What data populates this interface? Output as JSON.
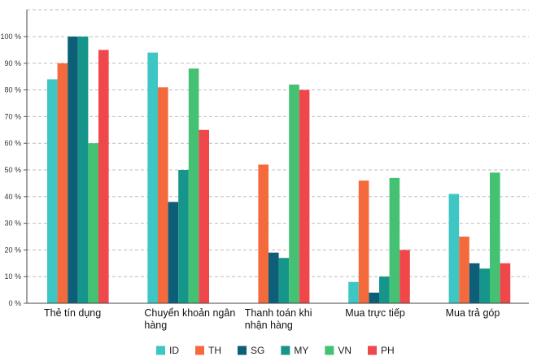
{
  "chart_data": {
    "type": "bar",
    "title": "",
    "xlabel": "",
    "ylabel": "",
    "categories": [
      [
        "Thẻ tín dụng"
      ],
      [
        "Chuyển khoản ngân",
        "hàng"
      ],
      [
        "Thanh toán khi",
        "nhận hàng"
      ],
      [
        "Mua trực tiếp"
      ],
      [
        "Mua trả góp"
      ]
    ],
    "series": [
      {
        "name": "ID",
        "color": "#3dc6c3",
        "values": [
          84,
          94,
          0,
          8,
          41
        ]
      },
      {
        "name": "TH",
        "color": "#f46a3c",
        "values": [
          90,
          81,
          52,
          46,
          25
        ]
      },
      {
        "name": "SG",
        "color": "#0d5f78",
        "values": [
          100,
          38,
          19,
          4,
          15
        ]
      },
      {
        "name": "MY",
        "color": "#16968b",
        "values": [
          100,
          50,
          17,
          10,
          13
        ]
      },
      {
        "name": "VN",
        "color": "#44c172",
        "values": [
          60,
          88,
          82,
          47,
          49
        ]
      },
      {
        "name": "PH",
        "color": "#f0474b",
        "values": [
          95,
          65,
          80,
          20,
          15
        ]
      }
    ],
    "ylim": [
      0,
      100
    ],
    "yticks": [
      "0 %",
      "10 %",
      "20 %",
      "30 %",
      "40 %",
      "50 %",
      "60 %",
      "70 %",
      "80 %",
      "90 %",
      "100 %"
    ],
    "grid": true,
    "legend_position": "bottom"
  }
}
